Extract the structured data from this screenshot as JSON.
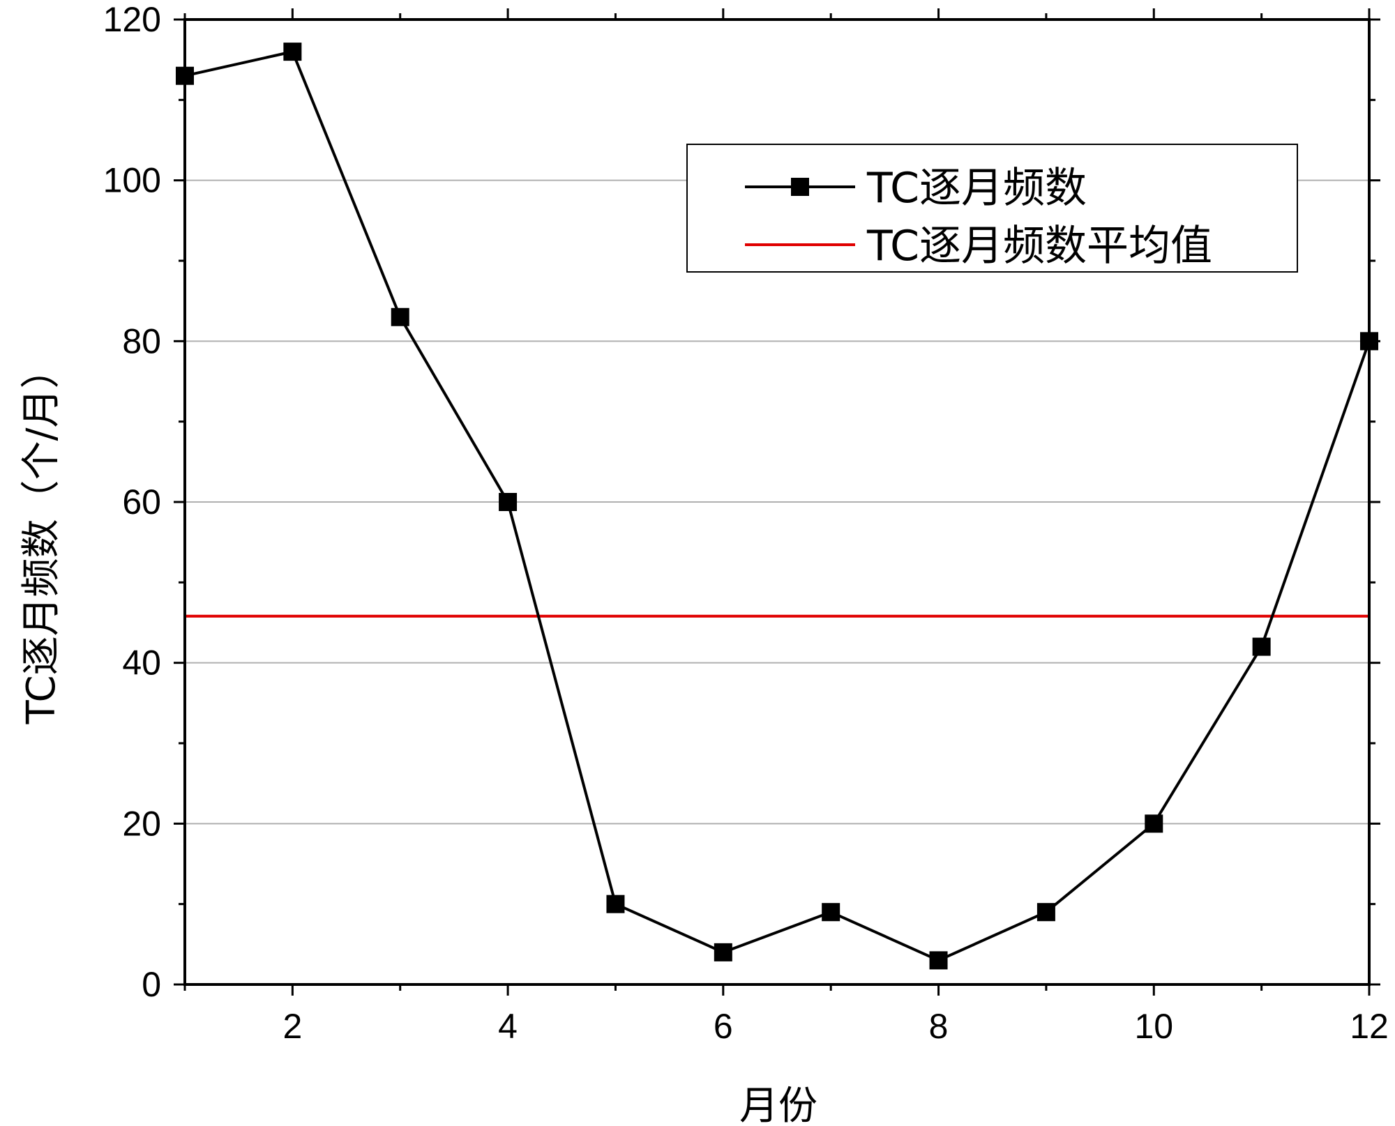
{
  "chart_data": {
    "type": "line",
    "xlabel": "月份",
    "ylabel": "TC逐月频数（个/月）",
    "xlim": [
      1,
      12
    ],
    "ylim": [
      0,
      120
    ],
    "x_ticks": [
      2,
      4,
      6,
      8,
      10,
      12
    ],
    "y_ticks": [
      0,
      20,
      40,
      60,
      80,
      100,
      120
    ],
    "grid": "horizontal",
    "legend_position": "top-right",
    "series": [
      {
        "name": "TC逐月频数",
        "type": "line",
        "marker": "square",
        "color": "#000000",
        "x": [
          1,
          2,
          3,
          4,
          5,
          6,
          7,
          8,
          9,
          10,
          11,
          12
        ],
        "values": [
          113,
          116,
          83,
          60,
          10,
          4,
          9,
          3,
          9,
          20,
          42,
          80
        ]
      },
      {
        "name": "TC逐月频数平均值",
        "type": "hline",
        "color": "#e00000",
        "value": 45.8
      }
    ]
  }
}
